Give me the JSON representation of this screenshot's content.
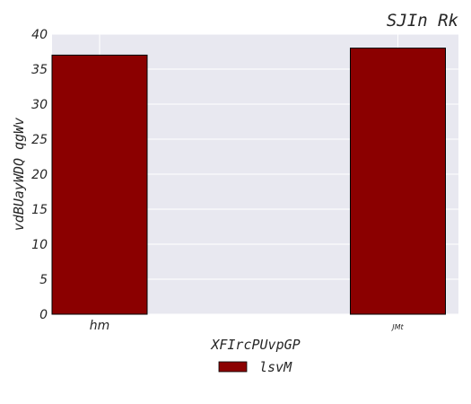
{
  "chart_data": {
    "type": "bar",
    "title": "SJIn Rk",
    "xlabel": "XFIrcPUvpGP",
    "ylabel": "vdBUayWDQ qgWv",
    "categories": [
      "hm",
      "JMt"
    ],
    "series": [
      {
        "name": "lsvM",
        "values": [
          37,
          38
        ],
        "color": "#8b0000"
      }
    ],
    "ylim": [
      0,
      40
    ],
    "yticks": [
      0,
      5,
      10,
      15,
      20,
      25,
      30,
      35,
      40
    ],
    "grid": true,
    "legend": "bottom-center",
    "background": "#e8e8f0"
  }
}
